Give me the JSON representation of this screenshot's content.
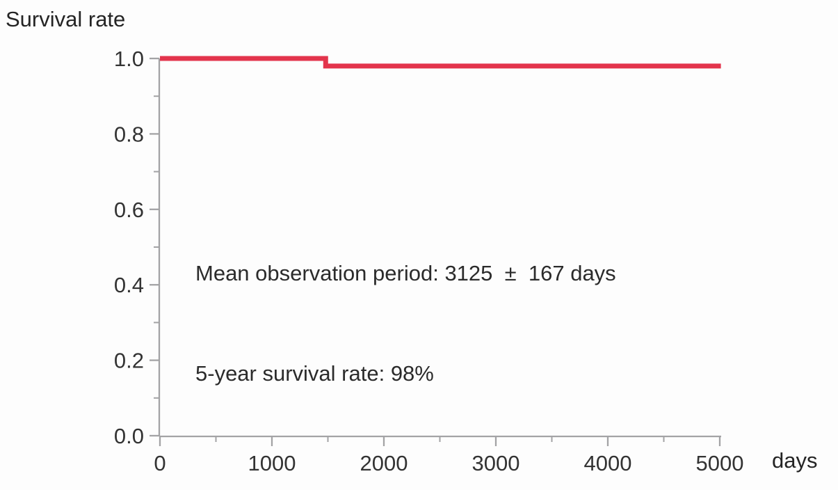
{
  "chart_data": {
    "type": "line",
    "subtype": "kaplan-meier-survival-step",
    "title": "Survival rate",
    "xlabel": "days",
    "ylabel": "Survival rate",
    "xlim": [
      0,
      5000
    ],
    "ylim": [
      0.0,
      1.0
    ],
    "grid": false,
    "legend": "none",
    "x_ticks": [
      {
        "value": 0,
        "label": "0"
      },
      {
        "value": 1000,
        "label": "1000"
      },
      {
        "value": 2000,
        "label": "2000"
      },
      {
        "value": 3000,
        "label": "3000"
      },
      {
        "value": 4000,
        "label": "4000"
      },
      {
        "value": 5000,
        "label": "5000"
      }
    ],
    "y_ticks": [
      {
        "value": 1.0,
        "label": "1.0"
      },
      {
        "value": 0.8,
        "label": "0.8"
      },
      {
        "value": 0.6,
        "label": "0.6"
      },
      {
        "value": 0.4,
        "label": "0.4"
      },
      {
        "value": 0.2,
        "label": "0.2"
      },
      {
        "value": 0.0,
        "label": "0.0"
      }
    ],
    "x_minor_ticks": [
      500,
      1500,
      2500,
      3500,
      4500
    ],
    "y_minor_ticks": [
      0.1,
      0.3,
      0.5,
      0.7,
      0.9
    ],
    "series": [
      {
        "name": "survival-curve",
        "color": "#e3344c",
        "points": [
          [
            0,
            1.0
          ],
          [
            1480,
            1.0
          ],
          [
            1480,
            0.98
          ],
          [
            5010,
            0.98
          ]
        ]
      }
    ],
    "annotations": {
      "line1": "Mean observation period: 3125  ±  167 days",
      "line2": "5-year survival rate: 98%"
    },
    "colors": {
      "curve": "#e3344c",
      "axis": "#a3a3a5",
      "tick_label": "#333333",
      "text": "#242424"
    }
  }
}
